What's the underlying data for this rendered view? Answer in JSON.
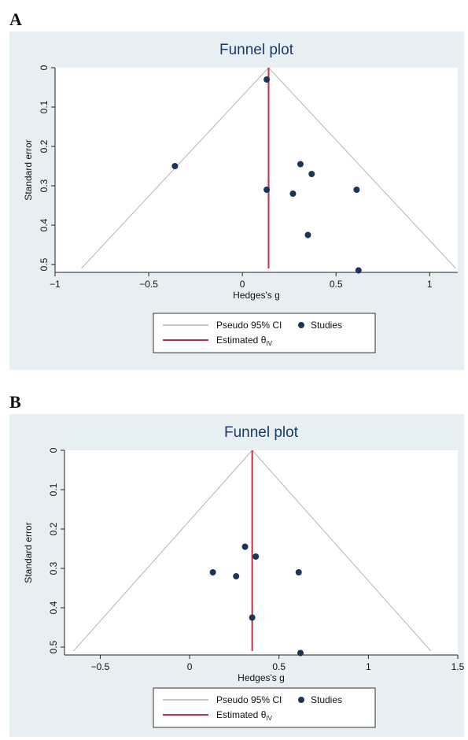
{
  "panels": [
    {
      "letter": "A"
    },
    {
      "letter": "B"
    }
  ],
  "legend": {
    "ci_label": "Pseudo 95% CI",
    "studies_label": "Studies",
    "estimate_label": "Estimated θ",
    "estimate_subscript": "IV"
  },
  "colors": {
    "panel_bg": "#e7eff2",
    "plot_bg": "#ffffff",
    "title": "#1b3a6b",
    "ci_lines": "#b5b5b5",
    "estimate_line": "#c0304a",
    "study_points": "#1a3558"
  },
  "chart_data": [
    {
      "type": "scatter",
      "title": "Funnel plot",
      "xlabel": "Hedges's g",
      "ylabel": "Standard error",
      "xlim": [
        -1.0,
        1.15
      ],
      "ylim": [
        0,
        0.52
      ],
      "y_reversed": true,
      "xticks": [
        -1,
        -0.5,
        0,
        0.5,
        1
      ],
      "xtick_labels": [
        "−1",
        "−0.5",
        "0",
        "0.5",
        "1"
      ],
      "yticks": [
        0,
        0.1,
        0.2,
        0.3,
        0.4,
        0.5
      ],
      "ytick_labels": [
        "0",
        "0.1",
        "0.2",
        "0.3",
        "0.4",
        "0.5"
      ],
      "estimate": 0.14,
      "ci_max_se": 0.51,
      "series": [
        {
          "name": "Studies",
          "points": [
            {
              "x": 0.13,
              "y": 0.03
            },
            {
              "x": -0.36,
              "y": 0.25
            },
            {
              "x": 0.13,
              "y": 0.31
            },
            {
              "x": 0.31,
              "y": 0.245
            },
            {
              "x": 0.37,
              "y": 0.27
            },
            {
              "x": 0.27,
              "y": 0.32
            },
            {
              "x": 0.61,
              "y": 0.31
            },
            {
              "x": 0.35,
              "y": 0.425
            },
            {
              "x": 0.62,
              "y": 0.515
            }
          ]
        }
      ]
    },
    {
      "type": "scatter",
      "title": "Funnel plot",
      "xlabel": "Hedges's g",
      "ylabel": "Standard error",
      "xlim": [
        -0.7,
        1.5
      ],
      "ylim": [
        0,
        0.52
      ],
      "y_reversed": true,
      "xticks": [
        -0.5,
        0,
        0.5,
        1,
        1.5
      ],
      "xtick_labels": [
        "−0.5",
        "0",
        "0.5",
        "1",
        "1.5"
      ],
      "yticks": [
        0,
        0.1,
        0.2,
        0.3,
        0.4,
        0.5
      ],
      "ytick_labels": [
        "0",
        "0.1",
        "0.2",
        "0.3",
        "0.4",
        "0.5"
      ],
      "estimate": 0.35,
      "ci_max_se": 0.51,
      "series": [
        {
          "name": "Studies",
          "points": [
            {
              "x": 0.31,
              "y": 0.245
            },
            {
              "x": 0.37,
              "y": 0.27
            },
            {
              "x": 0.13,
              "y": 0.31
            },
            {
              "x": 0.26,
              "y": 0.32
            },
            {
              "x": 0.61,
              "y": 0.31
            },
            {
              "x": 0.35,
              "y": 0.425
            },
            {
              "x": 0.62,
              "y": 0.515
            }
          ]
        }
      ]
    }
  ]
}
